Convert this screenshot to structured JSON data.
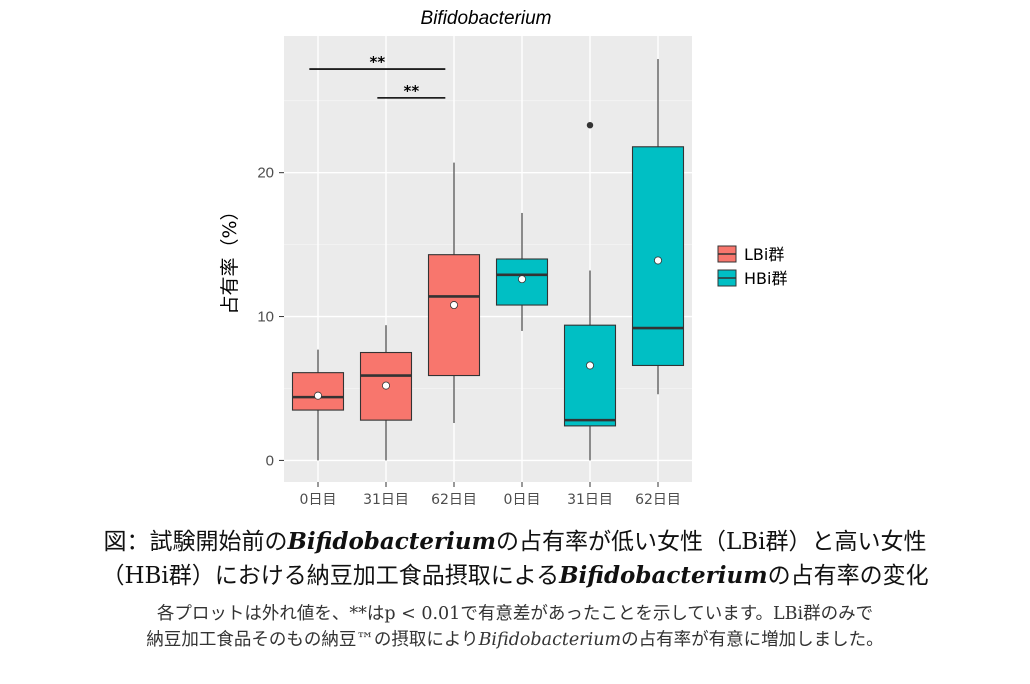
{
  "chart_data": {
    "type": "box",
    "title": "Bifidobacterium",
    "xlabel": "",
    "ylabel": "占有率（%）",
    "ylim": [
      -1.5,
      29.5
    ],
    "yticks": [
      0,
      10,
      20
    ],
    "grid": true,
    "legend_position": "right",
    "categories": [
      "0日目",
      "31日目",
      "62日目",
      "0日目",
      "31日目",
      "62日目"
    ],
    "series": [
      {
        "name": "LBi群",
        "color": "#F8766D",
        "boxes": [
          {
            "category_index": 0,
            "min": 0.0,
            "q1": 3.5,
            "median": 4.4,
            "q3": 6.1,
            "max": 7.7,
            "mean": 4.5,
            "outliers": []
          },
          {
            "category_index": 1,
            "min": 0.0,
            "q1": 2.8,
            "median": 5.9,
            "q3": 7.5,
            "max": 9.4,
            "mean": 5.2,
            "outliers": []
          },
          {
            "category_index": 2,
            "min": 2.6,
            "q1": 5.9,
            "median": 11.4,
            "q3": 14.3,
            "max": 20.7,
            "mean": 10.8,
            "outliers": []
          }
        ]
      },
      {
        "name": "HBi群",
        "color": "#00BFC4",
        "boxes": [
          {
            "category_index": 3,
            "min": 9.0,
            "q1": 10.8,
            "median": 12.9,
            "q3": 14.0,
            "max": 17.2,
            "mean": 12.6,
            "outliers": []
          },
          {
            "category_index": 4,
            "min": 0.0,
            "q1": 2.4,
            "median": 2.8,
            "q3": 9.4,
            "max": 13.2,
            "mean": 6.6,
            "outliers": [
              23.3
            ]
          },
          {
            "category_index": 5,
            "min": 4.6,
            "q1": 6.6,
            "median": 9.2,
            "q3": 21.8,
            "max": 27.9,
            "mean": 13.9,
            "outliers": []
          }
        ]
      }
    ],
    "annotations": [
      {
        "text": "**",
        "from_index": 0,
        "to_index": 2,
        "y": 27.2
      },
      {
        "text": "**",
        "from_index": 1,
        "to_index": 2,
        "y": 25.2
      }
    ]
  },
  "caption": {
    "line1_prefix": "図：試験開始前の",
    "line1_italic": "Bifidobacterium",
    "line1_suffix": "の占有率が低い女性（LBi群）と高い女性",
    "line2_prefix": "（HBi群）における納豆加工食品摂取による",
    "line2_italic": "Bifidobacterium",
    "line2_suffix": "の占有率の変化",
    "note1": "各プロットは外れ値を、**はp < 0.01で有意差があったことを示しています。LBi群のみで",
    "note2_prefix": "納豆加工食品そのもの納豆™の摂取により",
    "note2_italic": "Bifidobacterium",
    "note2_suffix": "の占有率が有意に増加しました。"
  }
}
